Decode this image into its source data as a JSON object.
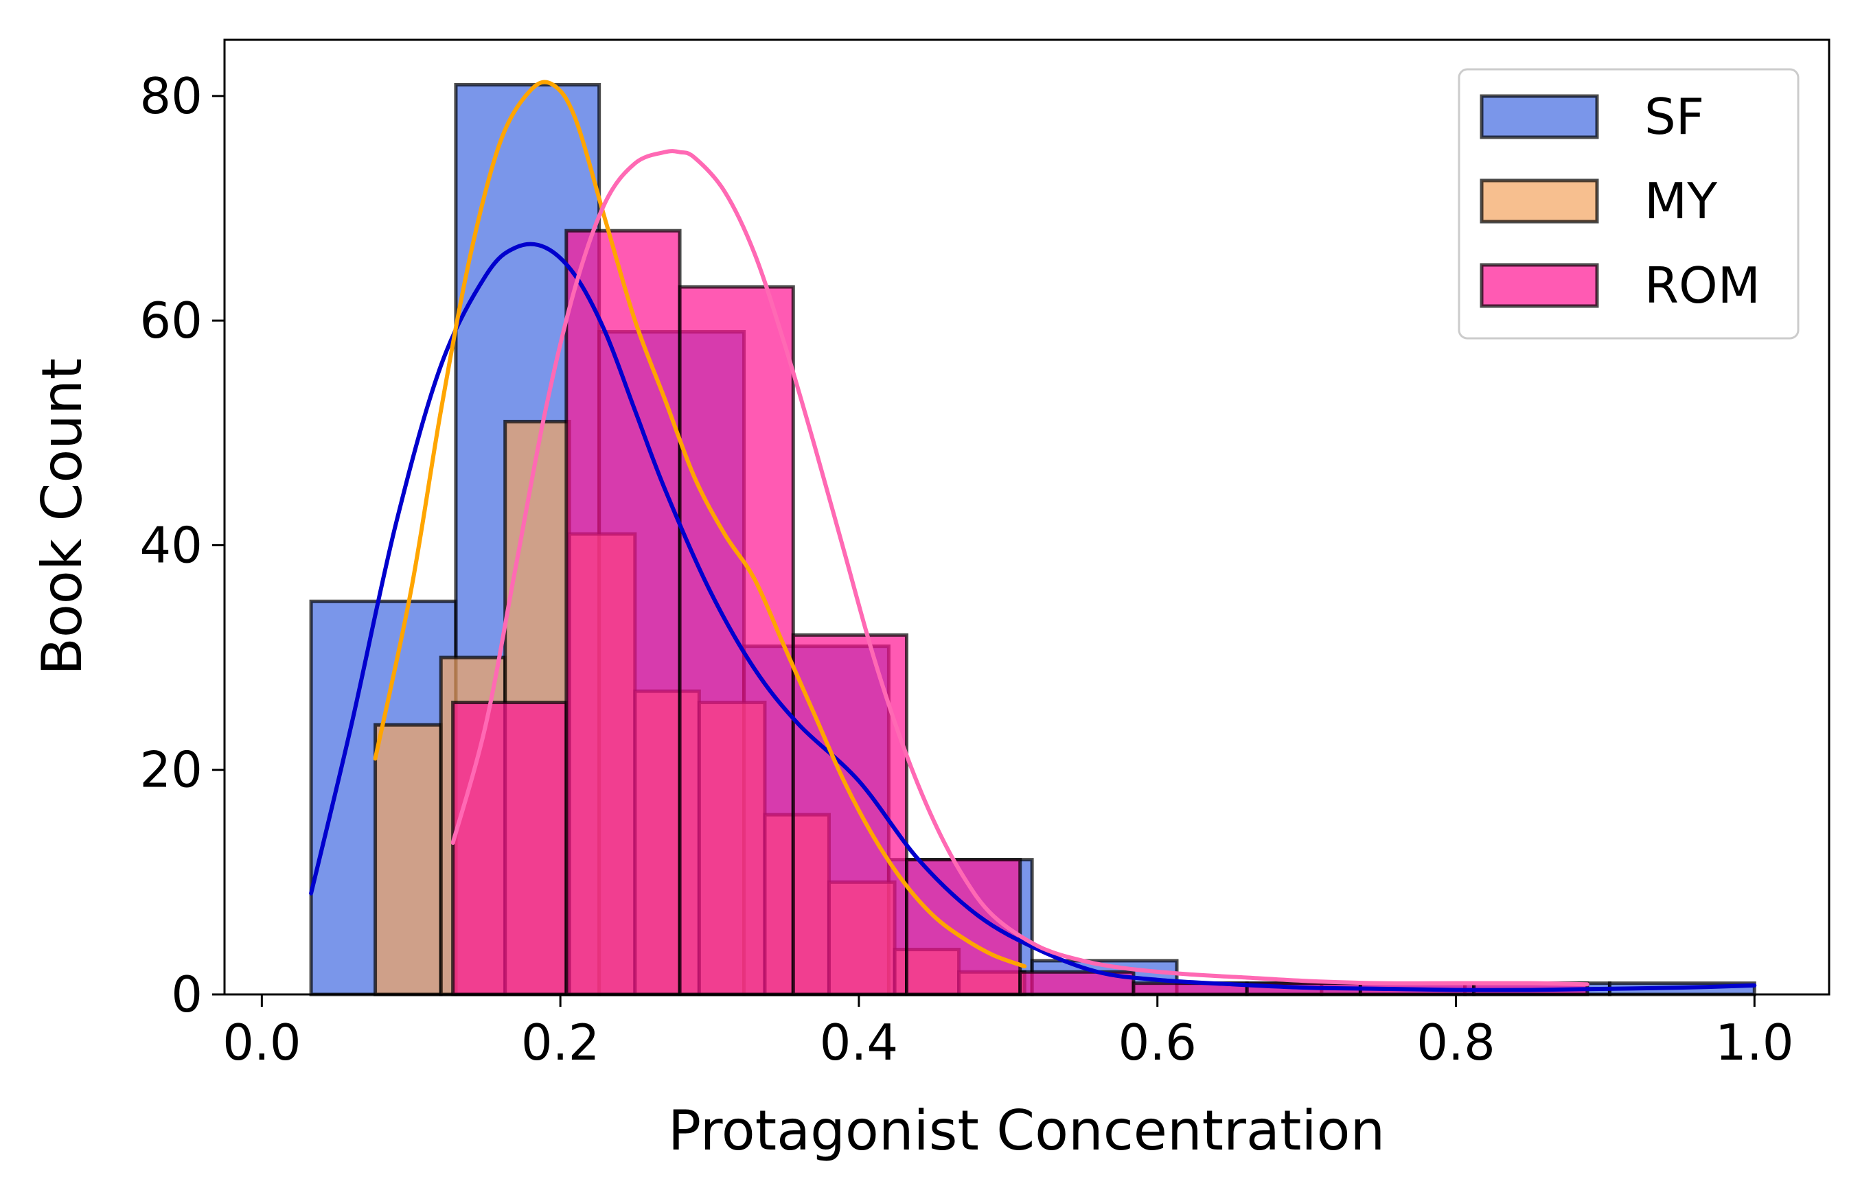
{
  "chart_data": {
    "type": "bar",
    "subtype": "overlapping histogram with kde",
    "title": "",
    "xlabel": "Protagonist Concentration",
    "ylabel": "Book Count",
    "xlim": [
      -0.025,
      1.05
    ],
    "ylim": [
      0,
      85
    ],
    "xticks": [
      0.0,
      0.2,
      0.4,
      0.6,
      0.8,
      1.0
    ],
    "xtick_labels": [
      "0.0",
      "0.2",
      "0.4",
      "0.6",
      "0.8",
      "1.0"
    ],
    "yticks": [
      0,
      20,
      40,
      60,
      80
    ],
    "ytick_labels": [
      "0",
      "20",
      "40",
      "60",
      "80"
    ],
    "grid": false,
    "legend_position": "top-right",
    "series": [
      {
        "name": "SF",
        "fill": "#4169E1",
        "kde_color": "#0000CD",
        "bins": [
          {
            "x0": 0.033,
            "x1": 0.13,
            "count": 35
          },
          {
            "x0": 0.13,
            "x1": 0.226,
            "count": 81
          },
          {
            "x0": 0.226,
            "x1": 0.323,
            "count": 59
          },
          {
            "x0": 0.323,
            "x1": 0.42,
            "count": 31
          },
          {
            "x0": 0.42,
            "x1": 0.516,
            "count": 12
          },
          {
            "x0": 0.516,
            "x1": 0.613,
            "count": 3
          },
          {
            "x0": 0.613,
            "x1": 0.71,
            "count": 1
          },
          {
            "x0": 0.71,
            "x1": 0.806,
            "count": 1
          },
          {
            "x0": 0.806,
            "x1": 0.903,
            "count": 1
          },
          {
            "x0": 0.903,
            "x1": 1.0,
            "count": 1
          }
        ],
        "kde": {
          "x": [
            0.033,
            0.06,
            0.09,
            0.12,
            0.15,
            0.17,
            0.19,
            0.21,
            0.23,
            0.25,
            0.27,
            0.3,
            0.33,
            0.36,
            0.4,
            0.44,
            0.48,
            0.52,
            0.56,
            0.6,
            0.65,
            0.7,
            0.75,
            0.8,
            0.85,
            0.9,
            0.95,
            1.0
          ],
          "y": [
            9,
            24,
            42,
            56,
            64,
            66.5,
            66.5,
            64,
            59,
            52,
            45,
            36,
            29,
            24,
            19,
            12,
            7,
            4,
            2,
            1.3,
            0.9,
            0.6,
            0.5,
            0.4,
            0.4,
            0.5,
            0.6,
            0.8
          ]
        }
      },
      {
        "name": "MY",
        "fill": "#F4A460",
        "kde_color": "#FFA500",
        "bins": [
          {
            "x0": 0.076,
            "x1": 0.12,
            "count": 24
          },
          {
            "x0": 0.12,
            "x1": 0.163,
            "count": 30
          },
          {
            "x0": 0.163,
            "x1": 0.206,
            "count": 51
          },
          {
            "x0": 0.206,
            "x1": 0.25,
            "count": 41
          },
          {
            "x0": 0.25,
            "x1": 0.293,
            "count": 27
          },
          {
            "x0": 0.293,
            "x1": 0.337,
            "count": 26
          },
          {
            "x0": 0.337,
            "x1": 0.38,
            "count": 16
          },
          {
            "x0": 0.38,
            "x1": 0.424,
            "count": 10
          },
          {
            "x0": 0.424,
            "x1": 0.467,
            "count": 4
          },
          {
            "x0": 0.467,
            "x1": 0.511,
            "count": 2
          }
        ],
        "kde": {
          "x": [
            0.076,
            0.1,
            0.12,
            0.14,
            0.16,
            0.18,
            0.195,
            0.21,
            0.23,
            0.25,
            0.27,
            0.29,
            0.31,
            0.33,
            0.35,
            0.37,
            0.39,
            0.41,
            0.43,
            0.45,
            0.47,
            0.49,
            0.511
          ],
          "y": [
            21,
            36,
            52,
            66,
            76,
            80.5,
            81,
            78,
            69,
            60,
            53,
            46,
            41,
            37,
            31,
            25,
            19,
            14,
            10,
            7,
            5,
            3.5,
            2.5
          ]
        }
      },
      {
        "name": "ROM",
        "fill": "#FF1493",
        "kde_color": "#FF69B4",
        "bins": [
          {
            "x0": 0.128,
            "x1": 0.204,
            "count": 26
          },
          {
            "x0": 0.204,
            "x1": 0.28,
            "count": 68
          },
          {
            "x0": 0.28,
            "x1": 0.356,
            "count": 63
          },
          {
            "x0": 0.356,
            "x1": 0.432,
            "count": 32
          },
          {
            "x0": 0.432,
            "x1": 0.508,
            "count": 12
          },
          {
            "x0": 0.508,
            "x1": 0.584,
            "count": 2
          },
          {
            "x0": 0.584,
            "x1": 0.66,
            "count": 1
          },
          {
            "x0": 0.66,
            "x1": 0.736,
            "count": 1
          },
          {
            "x0": 0.736,
            "x1": 0.812,
            "count": 1
          },
          {
            "x0": 0.812,
            "x1": 0.888,
            "count": 1
          }
        ],
        "kde": {
          "x": [
            0.128,
            0.15,
            0.17,
            0.19,
            0.21,
            0.23,
            0.25,
            0.27,
            0.28,
            0.29,
            0.31,
            0.33,
            0.35,
            0.37,
            0.39,
            0.41,
            0.43,
            0.45,
            0.47,
            0.49,
            0.52,
            0.55,
            0.58,
            0.62,
            0.66,
            0.7,
            0.75,
            0.8,
            0.85,
            0.888
          ],
          "y": [
            13.5,
            24,
            38,
            52,
            63,
            70.5,
            74,
            75,
            75,
            74.5,
            71.5,
            66,
            58,
            49,
            39.5,
            30,
            22,
            15.5,
            10.5,
            7,
            4.3,
            3.0,
            2.3,
            1.8,
            1.5,
            1.2,
            1.0,
            1.0,
            1.0,
            0.9
          ]
        }
      }
    ]
  }
}
